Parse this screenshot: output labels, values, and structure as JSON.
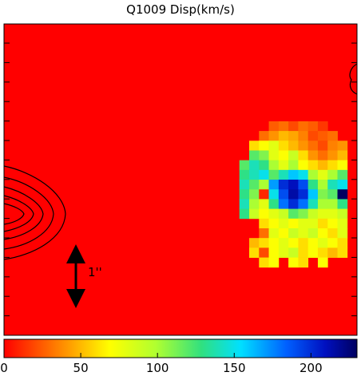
{
  "chart_data": {
    "type": "heatmap",
    "title": "Q1009 Disp(km/s)",
    "scale_label": "1''",
    "zlim": [
      0,
      230
    ],
    "zticks": [
      0,
      50,
      100,
      150,
      200
    ],
    "z": [
      [
        null,
        null,
        null,
        25,
        30,
        20,
        30,
        25,
        15,
        null,
        null,
        null
      ],
      [
        null,
        null,
        30,
        40,
        50,
        45,
        35,
        20,
        25,
        30,
        null,
        null
      ],
      [
        null,
        60,
        70,
        80,
        60,
        50,
        40,
        30,
        20,
        35,
        40,
        null
      ],
      [
        null,
        120,
        110,
        80,
        70,
        90,
        60,
        40,
        30,
        40,
        50,
        null
      ],
      [
        120,
        140,
        130,
        100,
        80,
        100,
        70,
        60,
        50,
        60,
        70,
        null
      ],
      [
        130,
        140,
        150,
        120,
        140,
        160,
        150,
        100,
        80,
        100,
        120,
        null
      ],
      [
        140,
        120,
        100,
        170,
        200,
        210,
        190,
        130,
        100,
        140,
        150,
        null
      ],
      [
        130,
        110,
        10,
        150,
        190,
        215,
        200,
        160,
        110,
        120,
        230,
        null
      ],
      [
        140,
        100,
        80,
        130,
        180,
        200,
        180,
        140,
        100,
        100,
        130,
        null
      ],
      [
        130,
        90,
        70,
        80,
        90,
        120,
        110,
        90,
        80,
        80,
        90,
        null
      ],
      [
        null,
        null,
        60,
        70,
        80,
        70,
        80,
        80,
        60,
        70,
        80,
        null
      ],
      [
        null,
        null,
        30,
        80,
        70,
        90,
        80,
        90,
        70,
        60,
        80,
        null
      ],
      [
        null,
        50,
        60,
        70,
        80,
        70,
        60,
        70,
        80,
        70,
        60,
        null
      ],
      [
        null,
        60,
        20,
        70,
        80,
        90,
        60,
        70,
        60,
        50,
        60,
        null
      ],
      [
        null,
        null,
        60,
        70,
        null,
        70,
        60,
        null,
        70,
        null,
        null,
        null
      ]
    ]
  }
}
